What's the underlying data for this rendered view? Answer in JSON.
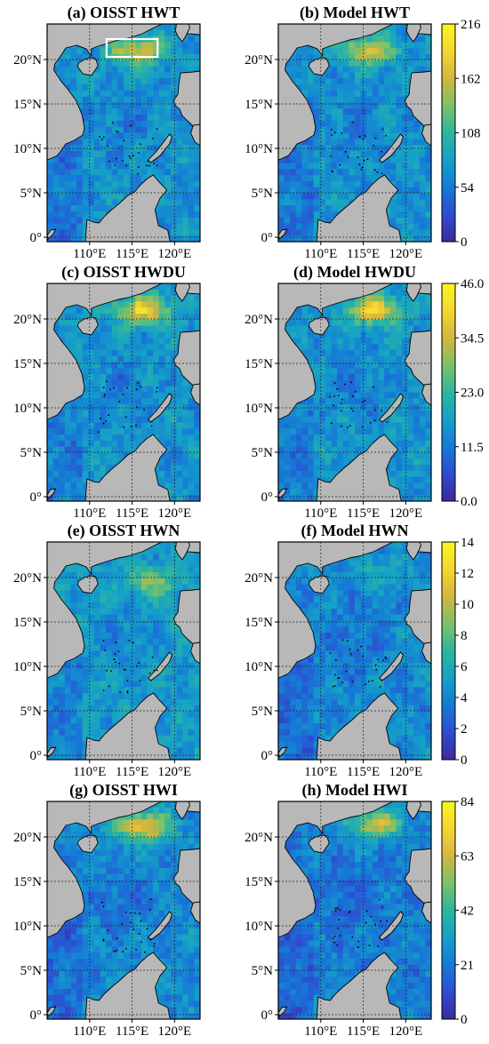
{
  "figure": {
    "colormap": [
      "#3b2a98",
      "#2f4bd1",
      "#1679d6",
      "#15a0c8",
      "#2bb5a1",
      "#7cc06a",
      "#d3b640",
      "#f6d530",
      "#f9f520"
    ],
    "land_color": "#b8b8b8",
    "ocean_low_color": "#3c55c8",
    "grid": "dashed",
    "highlight_box_color": "#ffffff"
  },
  "chart_data": [
    {
      "type": "heatmap",
      "panel_id": "a",
      "title": "(a) OISST HWT",
      "lat_ticks": [
        "0°",
        "5°N",
        "10°N",
        "15°N",
        "20°N"
      ],
      "lon_ticks": [
        "110°E",
        "115°E",
        "120°E"
      ],
      "lon_range": [
        105,
        123
      ],
      "lat_range": [
        -0.5,
        24
      ],
      "value_range": [
        0,
        216
      ],
      "mean_level": 0.33,
      "hotspot": {
        "lon": 115.5,
        "lat": 21.0,
        "level": 0.78
      },
      "highlight_box": {
        "lon": [
          112,
          118
        ],
        "lat": [
          20.3,
          22.3
        ]
      }
    },
    {
      "type": "heatmap",
      "panel_id": "b",
      "title": "(b) Model HWT",
      "lat_ticks": [
        "0°",
        "5°N",
        "10°N",
        "15°N",
        "20°N"
      ],
      "lon_ticks": [
        "110°E",
        "115°E",
        "120°E"
      ],
      "lon_range": [
        105,
        123
      ],
      "lat_range": [
        -0.5,
        24
      ],
      "value_range": [
        0,
        216
      ],
      "mean_level": 0.33,
      "hotspot": {
        "lon": 115.5,
        "lat": 21.0,
        "level": 0.78
      },
      "colorbar": {
        "ticks": [
          "0",
          "54",
          "108",
          "162",
          "216"
        ]
      }
    },
    {
      "type": "heatmap",
      "panel_id": "c",
      "title": "(c) OISST HWDU",
      "lat_ticks": [
        "0°",
        "5°N",
        "10°N",
        "15°N",
        "20°N"
      ],
      "lon_ticks": [
        "110°E",
        "115°E",
        "120°E"
      ],
      "lon_range": [
        105,
        123
      ],
      "lat_range": [
        -0.5,
        24
      ],
      "value_range": [
        0.0,
        46.0
      ],
      "mean_level": 0.34,
      "hotspot": {
        "lon": 116.3,
        "lat": 21.0,
        "level": 0.85
      }
    },
    {
      "type": "heatmap",
      "panel_id": "d",
      "title": "(d) Model HWDU",
      "lat_ticks": [
        "0°",
        "5°N",
        "10°N",
        "15°N",
        "20°N"
      ],
      "lon_ticks": [
        "110°E",
        "115°E",
        "120°E"
      ],
      "lon_range": [
        105,
        123
      ],
      "lat_range": [
        -0.5,
        24
      ],
      "value_range": [
        0.0,
        46.0
      ],
      "mean_level": 0.34,
      "hotspot": {
        "lon": 116.3,
        "lat": 21.0,
        "level": 0.85
      },
      "colorbar": {
        "ticks": [
          "0.0",
          "11.5",
          "23.0",
          "34.5",
          "46.0"
        ]
      }
    },
    {
      "type": "heatmap",
      "panel_id": "e",
      "title": "(e) OISST HWN",
      "lat_ticks": [
        "0°",
        "5°N",
        "10°N",
        "15°N",
        "20°N"
      ],
      "lon_ticks": [
        "110°E",
        "115°E",
        "120°E"
      ],
      "lon_range": [
        105,
        123
      ],
      "lat_range": [
        -0.5,
        24
      ],
      "value_range": [
        0,
        14
      ],
      "mean_level": 0.36,
      "hotspot": {
        "lon": 117.5,
        "lat": 19.5,
        "level": 0.62
      }
    },
    {
      "type": "heatmap",
      "panel_id": "f",
      "title": "(f) Model HWN",
      "lat_ticks": [
        "0°",
        "5°N",
        "10°N",
        "15°N",
        "20°N"
      ],
      "lon_ticks": [
        "110°E",
        "115°E",
        "120°E"
      ],
      "lon_range": [
        105,
        123
      ],
      "lat_range": [
        -0.5,
        24
      ],
      "value_range": [
        0,
        14
      ],
      "mean_level": 0.3,
      "hotspot": {
        "lon": 117.0,
        "lat": 20.5,
        "level": 0.45
      },
      "colorbar": {
        "ticks": [
          "0",
          "2",
          "4",
          "6",
          "8",
          "10",
          "12",
          "14"
        ]
      }
    },
    {
      "type": "heatmap",
      "panel_id": "g",
      "title": "(g) OISST HWI",
      "lat_ticks": [
        "0°",
        "5°N",
        "10°N",
        "15°N",
        "20°N"
      ],
      "lon_ticks": [
        "110°E",
        "115°E",
        "120°E"
      ],
      "lon_range": [
        105,
        123
      ],
      "lat_range": [
        -0.5,
        24
      ],
      "value_range": [
        0,
        84
      ],
      "mean_level": 0.3,
      "hotspot": {
        "lon": 116.3,
        "lat": 21.2,
        "level": 0.85
      }
    },
    {
      "type": "heatmap",
      "panel_id": "h",
      "title": "(h) Model HWI",
      "lat_ticks": [
        "0°",
        "5°N",
        "10°N",
        "15°N",
        "20°N"
      ],
      "lon_ticks": [
        "110°E",
        "115°E",
        "120°E"
      ],
      "lon_range": [
        105,
        123
      ],
      "lat_range": [
        -0.5,
        24
      ],
      "value_range": [
        0,
        84
      ],
      "mean_level": 0.27,
      "hotspot": {
        "lon": 116.5,
        "lat": 21.5,
        "level": 0.75
      },
      "colorbar": {
        "ticks": [
          "0",
          "21",
          "42",
          "63",
          "84"
        ]
      }
    }
  ]
}
